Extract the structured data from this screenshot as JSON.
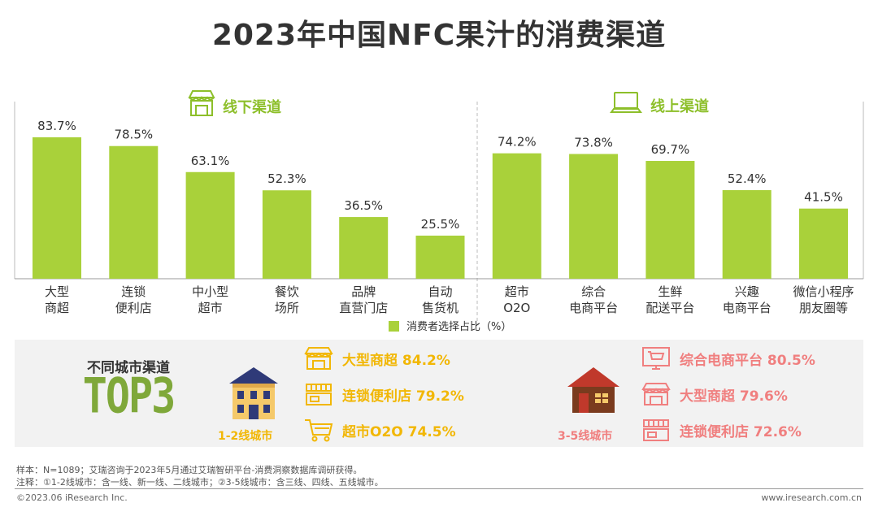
{
  "title": "2023年中国NFC果汁的消费渠道",
  "sections": {
    "offline": "线下渠道",
    "online": "线上渠道"
  },
  "legend": "消费者选择占比（%）",
  "chart_data": {
    "type": "bar",
    "title": "2023年中国NFC果汁的消费渠道",
    "categories": [
      "大型商超",
      "连锁便利店",
      "中小型超市",
      "餐饮场所",
      "品牌直营门店",
      "自动售货机",
      "超市O2O",
      "综合电商平台",
      "生鲜配送平台",
      "兴趣电商平台",
      "微信小程序朋友圈等"
    ],
    "category_lines": [
      [
        "大型",
        "商超"
      ],
      [
        "连锁",
        "便利店"
      ],
      [
        "中小型",
        "超市"
      ],
      [
        "餐饮",
        "场所"
      ],
      [
        "品牌",
        "直营门店"
      ],
      [
        "自动",
        "售货机"
      ],
      [
        "超市",
        "O2O"
      ],
      [
        "综合",
        "电商平台"
      ],
      [
        "生鲜",
        "配送平台"
      ],
      [
        "兴趣",
        "电商平台"
      ],
      [
        "微信小程序",
        "朋友圈等"
      ]
    ],
    "values": [
      83.7,
      78.5,
      63.1,
      52.3,
      36.5,
      25.5,
      74.2,
      73.8,
      69.7,
      52.4,
      41.5
    ],
    "value_labels": [
      "83.7%",
      "78.5%",
      "63.1%",
      "52.3%",
      "36.5%",
      "25.5%",
      "74.2%",
      "73.8%",
      "69.7%",
      "52.4%",
      "41.5%"
    ],
    "series": [
      {
        "name": "消费者选择占比（%）",
        "values": [
          83.7,
          78.5,
          63.1,
          52.3,
          36.5,
          25.5,
          74.2,
          73.8,
          69.7,
          52.4,
          41.5
        ]
      }
    ],
    "groups": [
      {
        "name": "线下渠道",
        "count": 6
      },
      {
        "name": "线上渠道",
        "count": 5
      }
    ],
    "ylim": [
      0,
      100
    ],
    "grid": false,
    "legend_position": "bottom-center",
    "bar_color": "#a9d13a"
  },
  "city": {
    "header": "不同城市渠道",
    "top3": "TOP3",
    "tier1": {
      "label": "1-2线城市",
      "color": "#f2b705",
      "items": [
        {
          "text": "大型商超 84.2%",
          "icon": "storefront-icon"
        },
        {
          "text": "连锁便利店 79.2%",
          "icon": "store-counter-icon"
        },
        {
          "text": "超市O2O 74.5%",
          "icon": "shopping-cart-icon"
        }
      ]
    },
    "tier2": {
      "label": "3-5线城市",
      "color": "#f07f7f",
      "items": [
        {
          "text": "综合电商平台 80.5%",
          "icon": "online-cart-icon"
        },
        {
          "text": "大型商超 79.6%",
          "icon": "storefront-icon"
        },
        {
          "text": "连锁便利店 72.6%",
          "icon": "store-counter-icon"
        }
      ]
    }
  },
  "notes": {
    "sample": "样本：N=1089；艾瑞咨询于2023年5月通过艾瑞智研平台-消费洞察数据库调研获得。",
    "remark": "注释：①1-2线城市：含一线、新一线、二线城市；②3-5线城市：含三线、四线、五线城市。"
  },
  "footer": {
    "copyright": "©2023.06 iResearch Inc.",
    "url": "www.iresearch.com.cn"
  }
}
